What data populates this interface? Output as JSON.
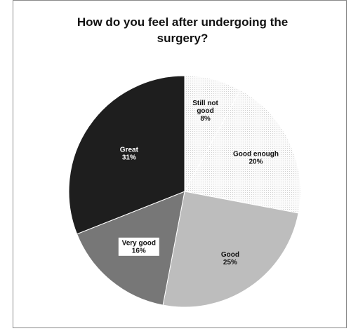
{
  "chart_data": {
    "type": "pie",
    "title": "How do you feel after undergoing the\nsurgery?",
    "slices": [
      {
        "label": "Still not good",
        "value": 8,
        "label_lines": [
          "Still not",
          "good",
          "8%"
        ],
        "color": "#f4f4f4",
        "pattern": true,
        "text_color": "#111111"
      },
      {
        "label": "Good enough",
        "value": 20,
        "label_lines": [
          "Good enough",
          "20%"
        ],
        "color": "#f7f7f7",
        "pattern": true,
        "text_color": "#111111"
      },
      {
        "label": "Good",
        "value": 25,
        "label_lines": [
          "Good",
          "25%"
        ],
        "color": "#bdbdbd",
        "pattern": false,
        "text_color": "#111111"
      },
      {
        "label": "Very good",
        "value": 16,
        "label_lines": [
          "Very good",
          "16%"
        ],
        "color": "#777777",
        "pattern": false,
        "text_color": "#111111",
        "label_box": "#ffffff"
      },
      {
        "label": "Great",
        "value": 31,
        "label_lines": [
          "Great",
          "31%"
        ],
        "color": "#1e1e1e",
        "pattern": false,
        "text_color": "#ffffff"
      }
    ],
    "legend": "none"
  }
}
